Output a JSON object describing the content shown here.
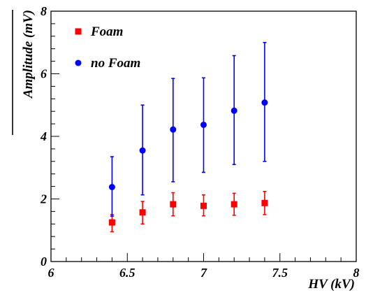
{
  "chart_data": {
    "type": "scatter",
    "xlabel": "HV (kV)",
    "ylabel": "Amplitude (mV)",
    "xlim": [
      6,
      8
    ],
    "ylim": [
      0,
      8
    ],
    "x_ticks": [
      "6",
      "6.5",
      "7",
      "7.5",
      "8"
    ],
    "y_ticks": [
      "0",
      "2",
      "4",
      "6",
      "8"
    ],
    "legend_position": "top-left",
    "grid": false,
    "series": [
      {
        "name": "Foam",
        "color": "#ff0000",
        "marker": "square",
        "x": [
          6.4,
          6.6,
          6.8,
          7.0,
          7.2,
          7.4
        ],
        "y": [
          1.25,
          1.57,
          1.83,
          1.78,
          1.83,
          1.87
        ],
        "yerr_low": [
          0.3,
          0.37,
          0.37,
          0.32,
          0.35,
          0.37
        ],
        "yerr_high": [
          0.25,
          0.35,
          0.37,
          0.35,
          0.35,
          0.37
        ]
      },
      {
        "name": "no Foam",
        "color": "#0000ff",
        "marker": "circle",
        "x": [
          6.4,
          6.6,
          6.8,
          7.0,
          7.2,
          7.4
        ],
        "y": [
          2.38,
          3.55,
          4.22,
          4.37,
          4.82,
          5.08
        ],
        "yerr_low": [
          0.93,
          1.42,
          1.67,
          1.52,
          1.72,
          1.88
        ],
        "yerr_high": [
          0.97,
          1.45,
          1.63,
          1.5,
          1.76,
          1.92
        ]
      }
    ]
  }
}
